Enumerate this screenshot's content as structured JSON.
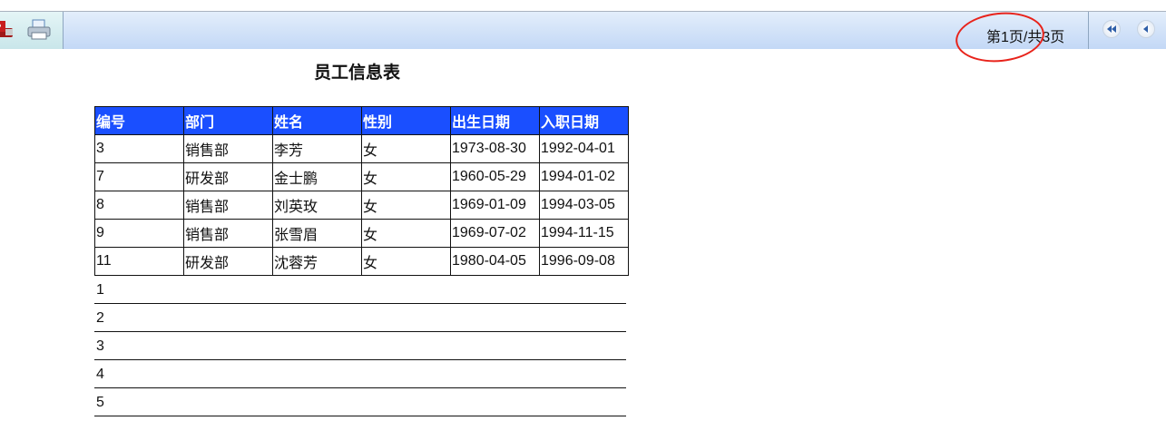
{
  "toolbar": {
    "icons": [
      "pdf-export-icon",
      "print-icon",
      "first-page-icon",
      "previous-page-icon"
    ],
    "page_info": "第1页/共3页"
  },
  "annotation": {
    "color": "#e8231b",
    "shape": "ellipse around page info"
  },
  "report": {
    "title": "员工信息表",
    "header_color": "#1a4fff",
    "columns": [
      "编号",
      "部门",
      "姓名",
      "性别",
      "出生日期",
      "入职日期"
    ],
    "rows": [
      [
        "3",
        "销售部",
        "李芳",
        "女",
        "1973-08-30",
        "1992-04-01"
      ],
      [
        "7",
        "研发部",
        "金士鹏",
        "女",
        "1960-05-29",
        "1994-01-02"
      ],
      [
        "8",
        "销售部",
        "刘英玫",
        "女",
        "1969-01-09",
        "1994-03-05"
      ],
      [
        "9",
        "销售部",
        "张雪眉",
        "女",
        "1969-07-02",
        "1994-11-15"
      ],
      [
        "11",
        "研发部",
        "沈蓉芳",
        "女",
        "1980-04-05",
        "1996-09-08"
      ]
    ],
    "numbered_lines": [
      "1",
      "2",
      "3",
      "4",
      "5"
    ]
  }
}
